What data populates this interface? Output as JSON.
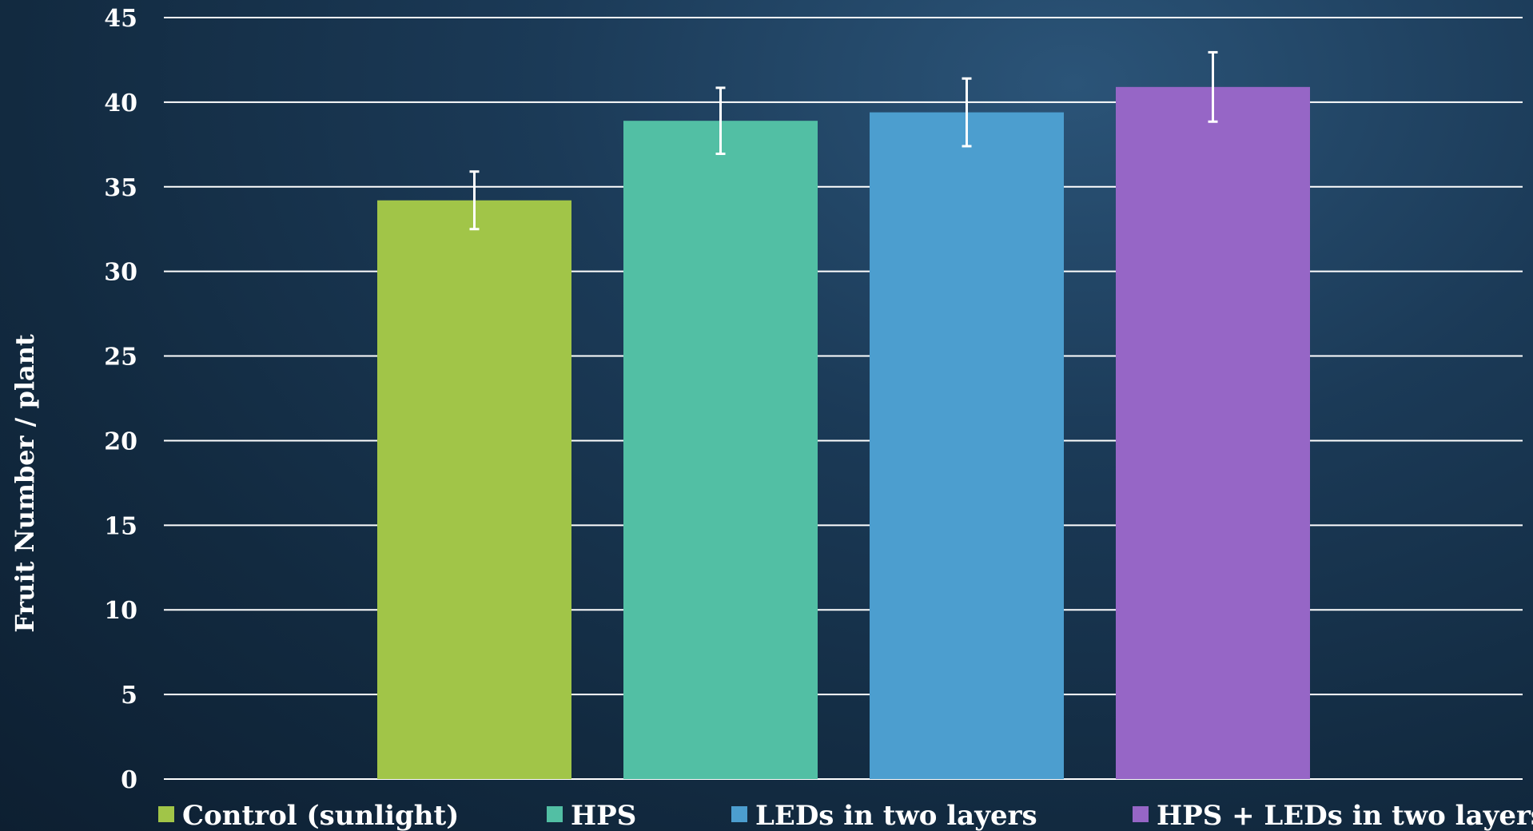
{
  "chart_data": {
    "type": "bar",
    "categories": [
      "Control (sunlight)",
      "HPS",
      "LEDs in two layers",
      "HPS + LEDs in two layers"
    ],
    "series": [
      {
        "values": [
          34.2,
          38.9,
          39.4,
          40.9
        ],
        "error": [
          1.7,
          1.95,
          2.0,
          2.05
        ]
      }
    ],
    "colors": [
      "#a1c548",
      "#52bfa4",
      "#4c9ecf",
      "#9666c6"
    ],
    "xlabel": "",
    "ylabel": "Fruit Number / plant",
    "ylim": [
      0,
      45
    ],
    "yticks": [
      0,
      5,
      10,
      15,
      20,
      25,
      30,
      35,
      40,
      45
    ],
    "grid": true,
    "legend": "bottom"
  }
}
